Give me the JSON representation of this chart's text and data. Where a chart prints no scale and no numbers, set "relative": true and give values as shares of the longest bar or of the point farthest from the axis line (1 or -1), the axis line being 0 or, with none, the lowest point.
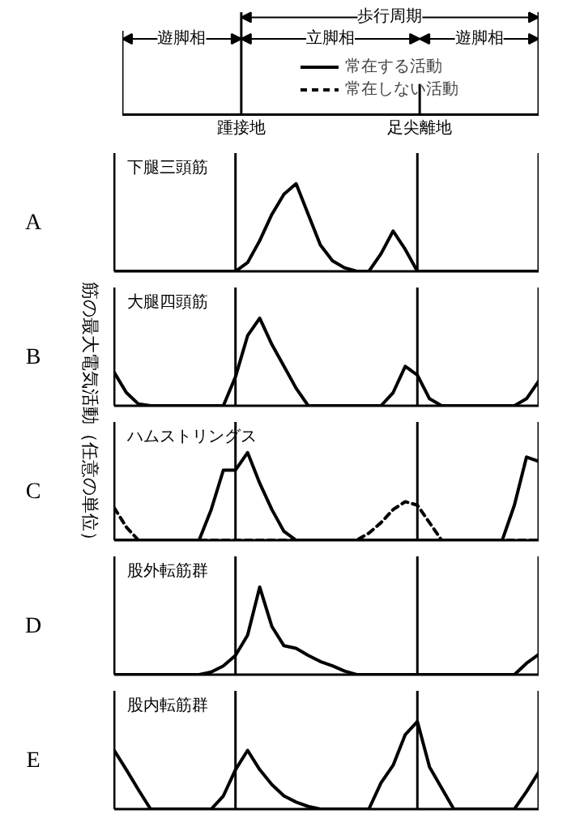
{
  "chart_data": [
    {
      "type": "line",
      "title": "A",
      "subtitle": "下腿三頭筋",
      "relative": true,
      "legend": "top",
      "annotations": [
        "遊脚相",
        "立脚相",
        "遊脚相",
        "歩行周期",
        "踵接地",
        "足尖離地"
      ],
      "categories": [
        null,
        null,
        null,
        null,
        null,
        null,
        null,
        null,
        null,
        null,
        null,
        null,
        null,
        null,
        null,
        null,
        null,
        null,
        null,
        null,
        null,
        null,
        null,
        null,
        null,
        null,
        null,
        null,
        null,
        null,
        null,
        null,
        null,
        null,
        null,
        null
      ],
      "series": [
        {
          "name": "常在する活動",
          "color": "#000000",
          "line_style": "solid",
          "values": [
            0,
            0,
            0,
            0,
            0,
            0,
            0,
            0,
            0,
            0,
            0,
            0.1,
            0.35,
            0.65,
            0.88,
            1.0,
            0.65,
            0.3,
            0.12,
            0.04,
            0,
            0,
            0.2,
            0.46,
            0.25,
            0,
            0,
            0,
            0,
            0,
            0,
            0,
            0,
            0,
            0,
            0
          ]
        }
      ]
    },
    {
      "type": "line",
      "title": "B",
      "subtitle": "大腿四頭筋",
      "ylabel": "筋の最大電気活動（任意の単位）",
      "relative": true,
      "categories": [
        null,
        null,
        null,
        null,
        null,
        null,
        null,
        null,
        null,
        null,
        null,
        null,
        null,
        null,
        null,
        null,
        null,
        null,
        null,
        null,
        null,
        null,
        null,
        null,
        null,
        null,
        null,
        null,
        null,
        null,
        null,
        null,
        null,
        null,
        null,
        null
      ],
      "series": [
        {
          "color": "#000000",
          "line_style": "solid",
          "values": [
            0.38,
            0.15,
            0.02,
            0,
            0,
            0,
            0,
            0,
            0,
            0,
            0.33,
            0.8,
            1.0,
            0.7,
            0.45,
            0.2,
            0,
            0,
            0,
            0,
            0,
            0,
            0,
            0.15,
            0.45,
            0.35,
            0.08,
            0,
            0,
            0,
            0,
            0,
            0,
            0,
            0.08,
            0.28
          ]
        }
      ]
    },
    {
      "type": "line",
      "title": "C",
      "subtitle": "ハムストリングス",
      "relative": true,
      "legend": "top",
      "categories": [
        null,
        null,
        null,
        null,
        null,
        null,
        null,
        null,
        null,
        null,
        null,
        null,
        null,
        null,
        null,
        null,
        null,
        null,
        null,
        null,
        null,
        null,
        null,
        null,
        null,
        null,
        null,
        null,
        null,
        null,
        null,
        null,
        null,
        null,
        null,
        null
      ],
      "series": [
        {
          "color": "#000000",
          "line_style": "solid",
          "values": [
            0,
            0,
            0,
            0,
            0,
            0,
            0,
            0,
            0.35,
            0.8,
            0.8,
            1.0,
            0.65,
            0.35,
            0.1,
            0,
            0,
            0,
            0,
            0,
            0,
            0,
            0,
            0,
            0,
            0,
            0,
            0,
            0,
            0,
            0,
            0,
            0,
            0.4,
            0.95,
            0.9
          ]
        },
        {
          "name": "常在しない活動",
          "color": "#000000",
          "line_style": "dashed",
          "values": [
            0.37,
            0.15,
            0,
            0,
            0,
            0,
            0,
            0,
            0,
            0,
            0,
            0,
            0,
            0,
            0,
            0,
            0,
            0,
            0,
            0,
            0,
            0.08,
            0.2,
            0.35,
            0.44,
            0.4,
            0.2,
            0,
            0,
            0,
            0,
            0,
            0,
            0,
            0,
            0
          ]
        }
      ]
    },
    {
      "type": "line",
      "title": "D",
      "subtitle": "股外転筋群",
      "relative": true,
      "categories": [
        null,
        null,
        null,
        null,
        null,
        null,
        null,
        null,
        null,
        null,
        null,
        null,
        null,
        null,
        null,
        null,
        null,
        null,
        null,
        null,
        null,
        null,
        null,
        null,
        null,
        null,
        null,
        null,
        null,
        null,
        null,
        null,
        null,
        null,
        null,
        null
      ],
      "series": [
        {
          "color": "#000000",
          "line_style": "solid",
          "values": [
            0,
            0,
            0,
            0,
            0,
            0,
            0,
            0,
            0.03,
            0.1,
            0.22,
            0.45,
            1.0,
            0.55,
            0.33,
            0.3,
            0.22,
            0.15,
            0.1,
            0.04,
            0,
            0,
            0,
            0,
            0,
            0,
            0,
            0,
            0,
            0,
            0,
            0,
            0,
            0,
            0.13,
            0.23
          ]
        }
      ]
    },
    {
      "type": "line",
      "title": "E",
      "subtitle": "股内転筋群",
      "relative": true,
      "categories": [
        null,
        null,
        null,
        null,
        null,
        null,
        null,
        null,
        null,
        null,
        null,
        null,
        null,
        null,
        null,
        null,
        null,
        null,
        null,
        null,
        null,
        null,
        null,
        null,
        null,
        null,
        null,
        null,
        null,
        null,
        null,
        null,
        null,
        null,
        null,
        null
      ],
      "series": [
        {
          "color": "#000000",
          "line_style": "solid",
          "values": [
            0.67,
            0.45,
            0.22,
            0,
            0,
            0,
            0,
            0,
            0,
            0.15,
            0.45,
            0.67,
            0.45,
            0.28,
            0.15,
            0.08,
            0.03,
            0,
            0,
            0,
            0,
            0,
            0.3,
            0.5,
            0.85,
            1.0,
            0.48,
            0.24,
            0,
            0,
            0,
            0,
            0,
            0,
            0.2,
            0.42
          ]
        }
      ]
    }
  ]
}
